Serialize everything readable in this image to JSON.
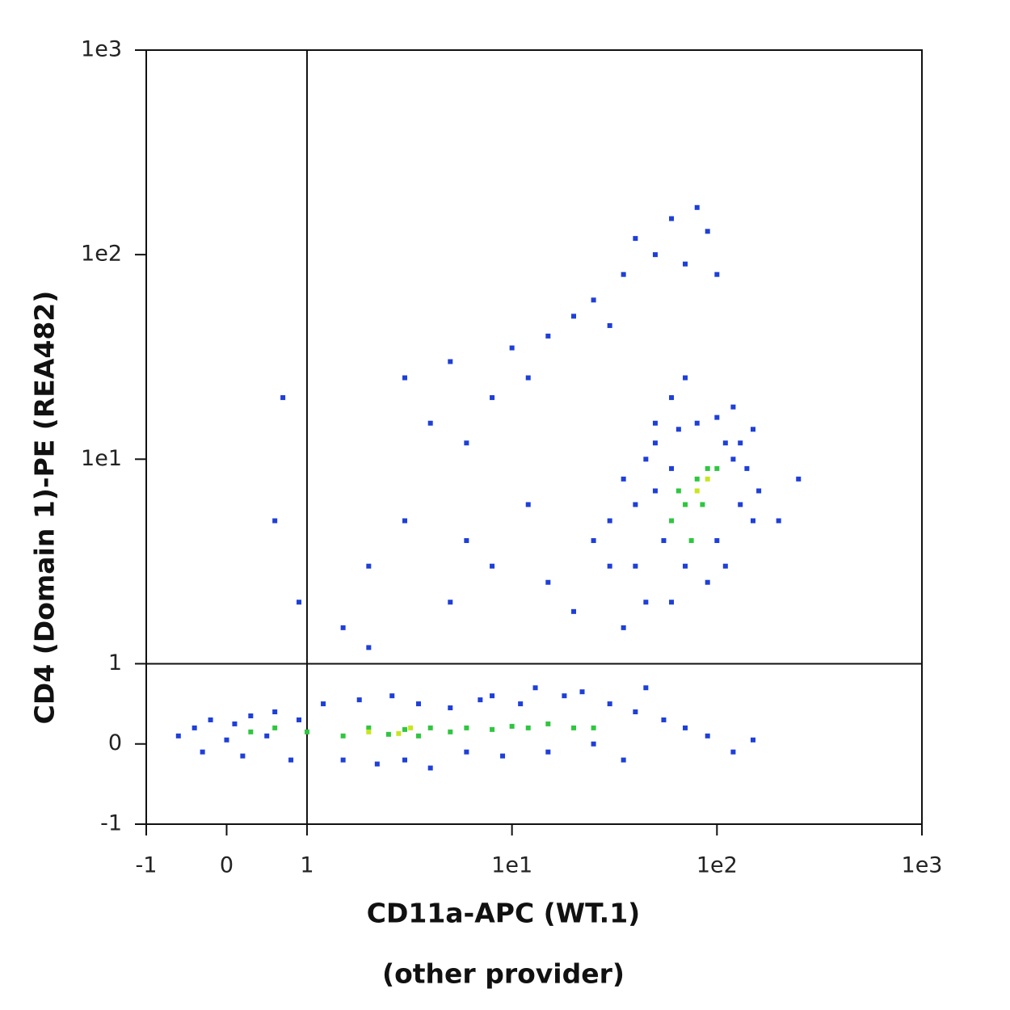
{
  "chart_data": {
    "type": "scatter",
    "xlabel": [
      "CD11a-APC (WT.1)",
      "(other provider)"
    ],
    "ylabel": "CD4 (Domain 1)-PE (REA482)",
    "scale": "biexponential",
    "xlim": [
      -1,
      1000
    ],
    "ylim": [
      -1,
      1000
    ],
    "xticks": [
      -1,
      0,
      1,
      {
        "value": 10,
        "label": "1e1"
      },
      {
        "value": 100,
        "label": "1e2"
      },
      {
        "value": 1000,
        "label": "1e3"
      }
    ],
    "yticks": [
      -1,
      0,
      1,
      {
        "value": 10,
        "label": "1e1"
      },
      {
        "value": 100,
        "label": "1e2"
      },
      {
        "value": 1000,
        "label": "1e3"
      }
    ],
    "quadrant": {
      "x": 1,
      "y": 1
    },
    "series": [
      {
        "color": "#1e3fd8",
        "x": [
          -0.6,
          -0.4,
          -0.3,
          -0.2,
          0,
          0.1,
          0.2,
          0.3,
          0.5,
          0.6,
          0.8,
          0.9,
          1.2,
          1.5,
          1.8,
          2.2,
          2.6,
          3,
          3.5,
          4,
          5,
          6,
          7,
          8,
          9,
          11,
          13,
          15,
          18,
          22,
          25,
          30,
          35,
          40,
          45,
          55,
          70,
          90,
          120,
          150,
          3,
          4,
          5,
          6,
          8,
          10,
          12,
          15,
          20,
          25,
          30,
          35,
          40,
          50,
          60,
          70,
          80,
          90,
          100,
          2,
          3,
          5,
          6,
          8,
          12,
          15,
          20,
          25,
          30,
          35,
          45,
          50,
          60,
          70,
          120,
          150,
          200,
          250,
          0.7,
          0.6,
          0.9,
          1.5,
          2,
          30,
          35,
          40,
          45,
          50,
          55,
          60,
          65,
          70,
          80,
          90,
          100,
          110,
          120,
          130,
          140,
          150,
          160,
          40,
          50,
          60,
          100,
          110,
          130
        ],
        "y": [
          0.1,
          0.2,
          -0.1,
          0.3,
          0.05,
          0.25,
          -0.15,
          0.35,
          0.1,
          0.4,
          -0.2,
          0.3,
          0.5,
          -0.2,
          0.55,
          -0.25,
          0.6,
          -0.2,
          0.5,
          -0.3,
          0.45,
          -0.1,
          0.55,
          0.6,
          -0.15,
          0.5,
          0.7,
          -0.1,
          0.6,
          0.65,
          0,
          0.5,
          -0.2,
          0.4,
          0.7,
          0.3,
          0.2,
          0.1,
          -0.1,
          0.05,
          25,
          15,
          30,
          12,
          20,
          35,
          25,
          40,
          50,
          60,
          45,
          80,
          120,
          100,
          150,
          90,
          170,
          130,
          80,
          3,
          5,
          2,
          4,
          3,
          6,
          2.5,
          1.8,
          4,
          3,
          1.5,
          2,
          15,
          20,
          25,
          18,
          14,
          5,
          8,
          20,
          5,
          2,
          1.5,
          1.2,
          5,
          8,
          3,
          10,
          12,
          4,
          2,
          14,
          3,
          15,
          2.5,
          16,
          12,
          10,
          6,
          9,
          5,
          7,
          6,
          7,
          9,
          4,
          3,
          12
        ]
      },
      {
        "color": "#2fc640",
        "x": [
          1,
          1.5,
          2,
          2.5,
          3,
          3.5,
          4,
          5,
          6,
          8,
          10,
          12,
          15,
          20,
          25,
          0.3,
          0.6,
          60,
          70,
          80,
          90,
          75,
          85,
          100,
          65
        ],
        "y": [
          0.15,
          0.1,
          0.2,
          0.12,
          0.18,
          0.1,
          0.2,
          0.15,
          0.2,
          0.18,
          0.22,
          0.2,
          0.25,
          0.2,
          0.2,
          0.15,
          0.2,
          5,
          6,
          8,
          9,
          4,
          6,
          9,
          7
        ]
      },
      {
        "color": "#c8e61e",
        "x": [
          2,
          2.8,
          3.2,
          90,
          80
        ],
        "y": [
          0.15,
          0.13,
          0.2,
          8,
          7
        ]
      }
    ]
  }
}
